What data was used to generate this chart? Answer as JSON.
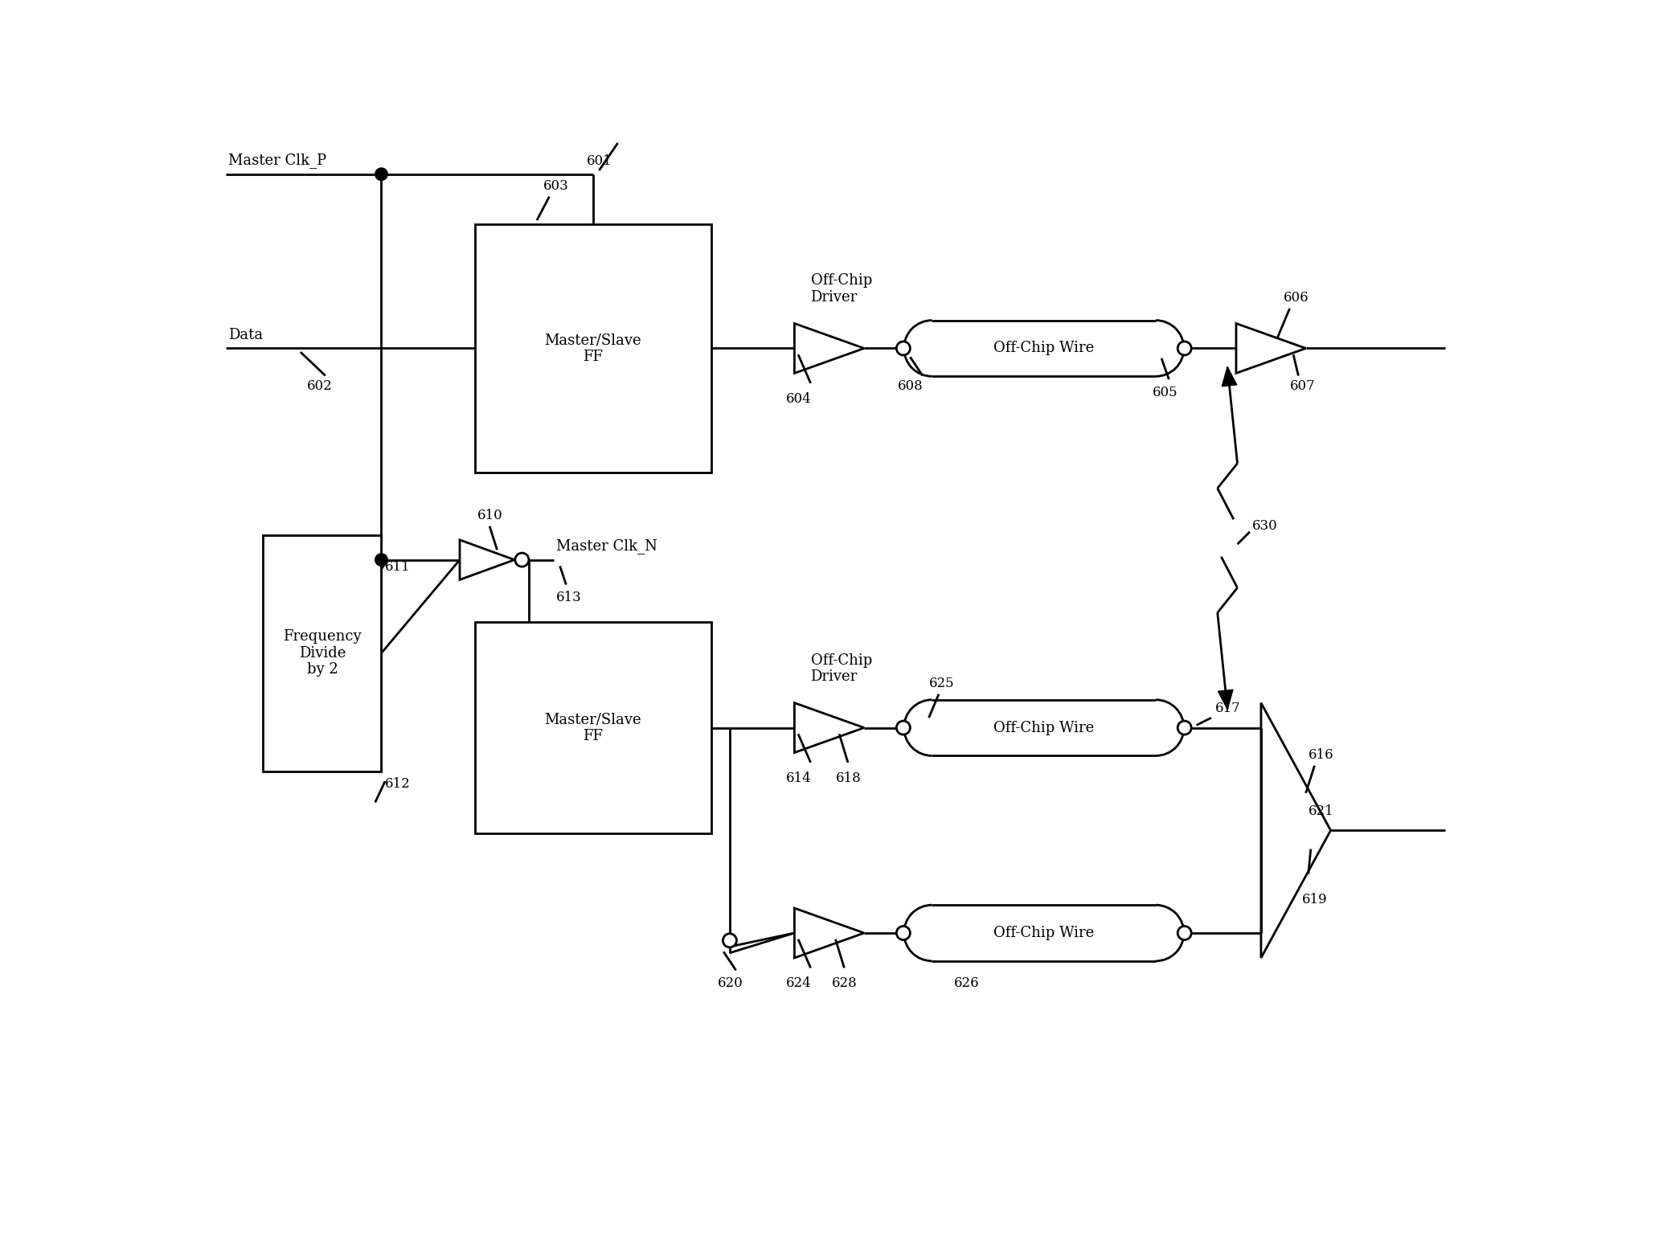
{
  "bg_color": "#ffffff",
  "lw": 2.0,
  "fig_width": 20.79,
  "fig_height": 15.48,
  "dpi": 100,
  "fs_label": 13,
  "fs_num": 12,
  "labels": {
    "master_clk_p": "Master Clk_P",
    "data": "Data",
    "master_clk_n": "Master Clk_N",
    "off_chip_driver_top": "Off-Chip\nDriver",
    "off_chip_wire_top": "Off-Chip Wire",
    "off_chip_driver_mid": "Off-Chip\nDriver",
    "off_chip_wire_mid": "Off-Chip Wire",
    "off_chip_wire_bot": "Off-Chip Wire",
    "master_slave_ff_top": "Master/Slave\nFF",
    "master_slave_ff_bot": "Master/Slave\nFF",
    "freq_divide": "Frequency\nDivide\nby 2",
    "n601": "601",
    "n602": "602",
    "n603": "603",
    "n604": "604",
    "n605": "605",
    "n606": "606",
    "n607": "607",
    "n608": "608",
    "n610": "610",
    "n611": "611",
    "n612": "612",
    "n613": "613",
    "n614": "614",
    "n616": "616",
    "n617": "617",
    "n618": "618",
    "n619": "619",
    "n620": "620",
    "n621": "621",
    "n624": "624",
    "n625": "625",
    "n626": "626",
    "n628": "628",
    "n630": "630"
  }
}
